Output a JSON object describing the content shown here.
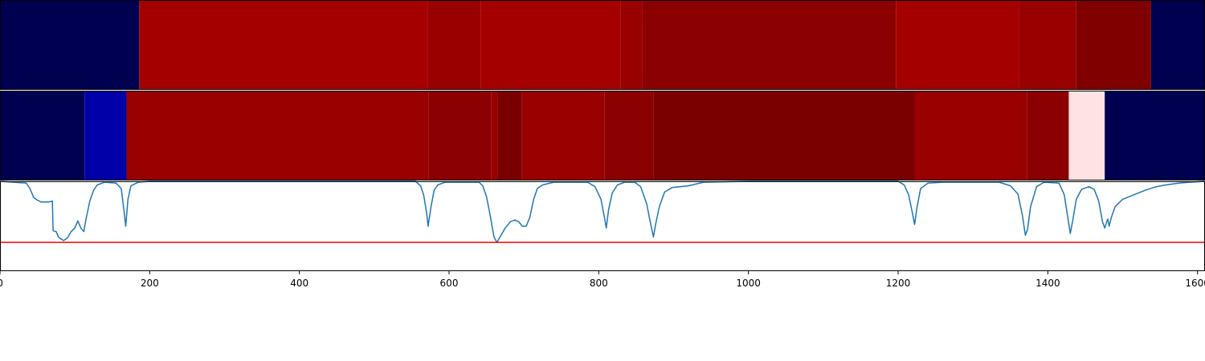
{
  "chart_data": [
    {
      "type": "heatmap",
      "xlim": [
        0,
        1610
      ],
      "segments": [
        {
          "x0": 0,
          "x1": 186,
          "color": "#000050"
        },
        {
          "x0": 186,
          "x1": 572,
          "color": "#a50000"
        },
        {
          "x0": 572,
          "x1": 642,
          "color": "#990000"
        },
        {
          "x0": 642,
          "x1": 829,
          "color": "#a50000"
        },
        {
          "x0": 829,
          "x1": 858,
          "color": "#990000"
        },
        {
          "x0": 858,
          "x1": 1197,
          "color": "#8b0000"
        },
        {
          "x0": 1197,
          "x1": 1362,
          "color": "#a50000"
        },
        {
          "x0": 1362,
          "x1": 1438,
          "color": "#990000"
        },
        {
          "x0": 1438,
          "x1": 1538,
          "color": "#800000"
        },
        {
          "x0": 1538,
          "x1": 1610,
          "color": "#000050"
        }
      ]
    },
    {
      "type": "heatmap",
      "xlim": [
        0,
        1610
      ],
      "segments": [
        {
          "x0": 0,
          "x1": 113,
          "color": "#000050"
        },
        {
          "x0": 113,
          "x1": 169,
          "color": "#0000a8"
        },
        {
          "x0": 169,
          "x1": 573,
          "color": "#990000"
        },
        {
          "x0": 573,
          "x1": 656,
          "color": "#8b0000"
        },
        {
          "x0": 656,
          "x1": 665,
          "color": "#990000"
        },
        {
          "x0": 665,
          "x1": 697,
          "color": "#7a0000"
        },
        {
          "x0": 697,
          "x1": 808,
          "color": "#990000"
        },
        {
          "x0": 808,
          "x1": 873,
          "color": "#8b0000"
        },
        {
          "x0": 873,
          "x1": 1222,
          "color": "#7a0000"
        },
        {
          "x0": 1222,
          "x1": 1372,
          "color": "#990000"
        },
        {
          "x0": 1372,
          "x1": 1428,
          "color": "#8b0000"
        },
        {
          "x0": 1428,
          "x1": 1476,
          "color": "#ffe2e2"
        },
        {
          "x0": 1476,
          "x1": 1610,
          "color": "#000050"
        }
      ]
    },
    {
      "type": "line",
      "xlim": [
        0,
        1610
      ],
      "ylim": [
        -1.0,
        0.0
      ],
      "series": [
        {
          "color": "#1f77b4",
          "points": [
            [
              0,
              0.0
            ],
            [
              35,
              -0.02
            ],
            [
              40,
              -0.08
            ],
            [
              45,
              -0.18
            ],
            [
              50,
              -0.21
            ],
            [
              55,
              -0.23
            ],
            [
              65,
              -0.23
            ],
            [
              70,
              -0.22
            ],
            [
              71,
              -0.55
            ],
            [
              75,
              -0.56
            ],
            [
              78,
              -0.62
            ],
            [
              81,
              -0.64
            ],
            [
              85,
              -0.66
            ],
            [
              90,
              -0.63
            ],
            [
              95,
              -0.56
            ],
            [
              100,
              -0.52
            ],
            [
              104,
              -0.44
            ],
            [
              108,
              -0.52
            ],
            [
              112,
              -0.56
            ],
            [
              115,
              -0.42
            ],
            [
              120,
              -0.22
            ],
            [
              125,
              -0.1
            ],
            [
              130,
              -0.04
            ],
            [
              140,
              -0.01
            ],
            [
              155,
              -0.02
            ],
            [
              162,
              -0.08
            ],
            [
              166,
              -0.35
            ],
            [
              168,
              -0.5
            ],
            [
              171,
              -0.2
            ],
            [
              175,
              -0.05
            ],
            [
              185,
              -0.01
            ],
            [
              200,
              0.0
            ],
            [
              555,
              0.0
            ],
            [
              562,
              -0.05
            ],
            [
              566,
              -0.15
            ],
            [
              570,
              -0.35
            ],
            [
              572,
              -0.5
            ],
            [
              576,
              -0.28
            ],
            [
              580,
              -0.1
            ],
            [
              585,
              -0.04
            ],
            [
              595,
              -0.01
            ],
            [
              640,
              -0.01
            ],
            [
              645,
              -0.05
            ],
            [
              650,
              -0.17
            ],
            [
              655,
              -0.38
            ],
            [
              660,
              -0.62
            ],
            [
              664,
              -0.68
            ],
            [
              668,
              -0.62
            ],
            [
              675,
              -0.52
            ],
            [
              682,
              -0.45
            ],
            [
              688,
              -0.43
            ],
            [
              693,
              -0.45
            ],
            [
              698,
              -0.5
            ],
            [
              703,
              -0.5
            ],
            [
              708,
              -0.4
            ],
            [
              713,
              -0.2
            ],
            [
              718,
              -0.08
            ],
            [
              725,
              -0.04
            ],
            [
              740,
              -0.01
            ],
            [
              785,
              -0.01
            ],
            [
              795,
              -0.06
            ],
            [
              803,
              -0.2
            ],
            [
              808,
              -0.42
            ],
            [
              810,
              -0.52
            ],
            [
              813,
              -0.32
            ],
            [
              818,
              -0.13
            ],
            [
              825,
              -0.04
            ],
            [
              835,
              -0.01
            ],
            [
              848,
              -0.01
            ],
            [
              856,
              -0.06
            ],
            [
              864,
              -0.25
            ],
            [
              868,
              -0.42
            ],
            [
              873,
              -0.62
            ],
            [
              876,
              -0.48
            ],
            [
              881,
              -0.28
            ],
            [
              888,
              -0.12
            ],
            [
              898,
              -0.07
            ],
            [
              920,
              -0.05
            ],
            [
              940,
              -0.01
            ],
            [
              1000,
              0.0
            ],
            [
              1200,
              0.0
            ],
            [
              1208,
              -0.04
            ],
            [
              1214,
              -0.15
            ],
            [
              1219,
              -0.35
            ],
            [
              1222,
              -0.48
            ],
            [
              1225,
              -0.3
            ],
            [
              1230,
              -0.08
            ],
            [
              1240,
              -0.02
            ],
            [
              1260,
              -0.01
            ],
            [
              1335,
              -0.01
            ],
            [
              1350,
              -0.05
            ],
            [
              1360,
              -0.14
            ],
            [
              1366,
              -0.38
            ],
            [
              1370,
              -0.6
            ],
            [
              1373,
              -0.53
            ],
            [
              1377,
              -0.28
            ],
            [
              1385,
              -0.06
            ],
            [
              1395,
              -0.01
            ],
            [
              1415,
              -0.02
            ],
            [
              1422,
              -0.15
            ],
            [
              1427,
              -0.42
            ],
            [
              1430,
              -0.58
            ],
            [
              1433,
              -0.45
            ],
            [
              1438,
              -0.2
            ],
            [
              1445,
              -0.09
            ],
            [
              1455,
              -0.06
            ],
            [
              1462,
              -0.09
            ],
            [
              1468,
              -0.22
            ],
            [
              1473,
              -0.45
            ],
            [
              1476,
              -0.52
            ],
            [
              1480,
              -0.42
            ],
            [
              1482,
              -0.5
            ],
            [
              1485,
              -0.4
            ],
            [
              1490,
              -0.28
            ],
            [
              1500,
              -0.2
            ],
            [
              1515,
              -0.15
            ],
            [
              1530,
              -0.1
            ],
            [
              1545,
              -0.06
            ],
            [
              1558,
              -0.04
            ],
            [
              1575,
              -0.02
            ],
            [
              1590,
              -0.01
            ],
            [
              1610,
              0.0
            ]
          ]
        }
      ],
      "threshold": {
        "y": -0.68,
        "color": "#ff0000"
      },
      "xticks": [
        0,
        200,
        400,
        600,
        800,
        1000,
        1200,
        1400,
        1600
      ],
      "xtick_labels": [
        "0",
        "200",
        "400",
        "600",
        "800",
        "1000",
        "1200",
        "1400",
        "1600"
      ]
    }
  ]
}
